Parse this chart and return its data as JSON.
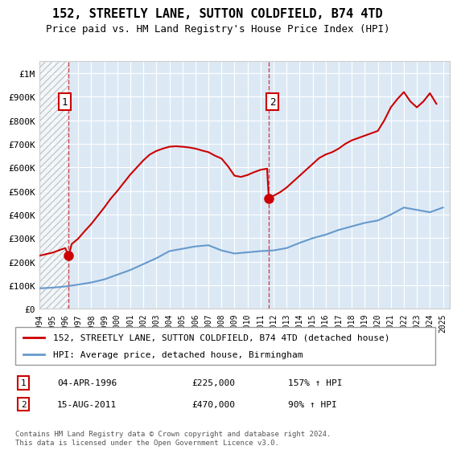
{
  "title": "152, STREETLY LANE, SUTTON COLDFIELD, B74 4TD",
  "subtitle": "Price paid vs. HM Land Registry's House Price Index (HPI)",
  "legend_line1": "152, STREETLY LANE, SUTTON COLDFIELD, B74 4TD (detached house)",
  "legend_line2": "HPI: Average price, detached house, Birmingham",
  "annotation1_label": "1",
  "annotation1_date": "04-APR-1996",
  "annotation1_price": 225000,
  "annotation1_hpi": "157% ↑ HPI",
  "annotation2_label": "2",
  "annotation2_date": "15-AUG-2011",
  "annotation2_price": 470000,
  "annotation2_hpi": "90% ↑ HPI",
  "footer": "Contains HM Land Registry data © Crown copyright and database right 2024.\nThis data is licensed under the Open Government Licence v3.0.",
  "hpi_color": "#6699cc",
  "price_color": "#cc0000",
  "bg_color": "#dce9f5",
  "hatch_color": "#cccccc",
  "ylim": [
    0,
    1050000
  ],
  "xlim_start": 1994.0,
  "xlim_end": 2025.5,
  "sale1_x": 1996.27,
  "sale2_x": 2011.63,
  "hpi_years": [
    1994,
    1995,
    1996,
    1997,
    1998,
    1999,
    2000,
    2001,
    2002,
    2003,
    2004,
    2005,
    2006,
    2007,
    2008,
    2009,
    2010,
    2011,
    2012,
    2013,
    2014,
    2015,
    2016,
    2017,
    2018,
    2019,
    2020,
    2021,
    2022,
    2023,
    2024,
    2025
  ],
  "hpi_values": [
    87000,
    90000,
    95000,
    103000,
    112000,
    125000,
    145000,
    165000,
    190000,
    215000,
    245000,
    255000,
    265000,
    270000,
    248000,
    235000,
    240000,
    245000,
    248000,
    258000,
    280000,
    300000,
    315000,
    335000,
    350000,
    365000,
    375000,
    400000,
    430000,
    420000,
    410000,
    430000
  ],
  "price_years": [
    1994.0,
    1994.5,
    1995.0,
    1995.5,
    1996.0,
    1996.27,
    1996.5,
    1997.0,
    1997.5,
    1998.0,
    1998.5,
    1999.0,
    1999.5,
    2000.0,
    2000.5,
    2001.0,
    2001.5,
    2002.0,
    2002.5,
    2003.0,
    2003.5,
    2004.0,
    2004.5,
    2005.0,
    2005.5,
    2006.0,
    2006.5,
    2007.0,
    2007.5,
    2008.0,
    2008.5,
    2009.0,
    2009.5,
    2010.0,
    2010.5,
    2011.0,
    2011.5,
    2011.63,
    2012.0,
    2012.5,
    2013.0,
    2013.5,
    2014.0,
    2014.5,
    2015.0,
    2015.5,
    2016.0,
    2016.5,
    2017.0,
    2017.5,
    2018.0,
    2018.5,
    2019.0,
    2019.5,
    2020.0,
    2020.5,
    2021.0,
    2021.5,
    2022.0,
    2022.5,
    2023.0,
    2023.5,
    2024.0,
    2024.5
  ],
  "price_values": [
    225000,
    232000,
    238000,
    248000,
    258000,
    225000,
    275000,
    298000,
    330000,
    360000,
    395000,
    430000,
    468000,
    500000,
    535000,
    570000,
    600000,
    630000,
    655000,
    670000,
    680000,
    688000,
    690000,
    688000,
    685000,
    680000,
    672000,
    665000,
    650000,
    638000,
    605000,
    565000,
    560000,
    568000,
    580000,
    590000,
    595000,
    470000,
    480000,
    495000,
    515000,
    540000,
    565000,
    590000,
    615000,
    640000,
    655000,
    665000,
    680000,
    700000,
    715000,
    725000,
    735000,
    745000,
    755000,
    800000,
    855000,
    890000,
    920000,
    880000,
    855000,
    880000,
    915000,
    870000
  ]
}
